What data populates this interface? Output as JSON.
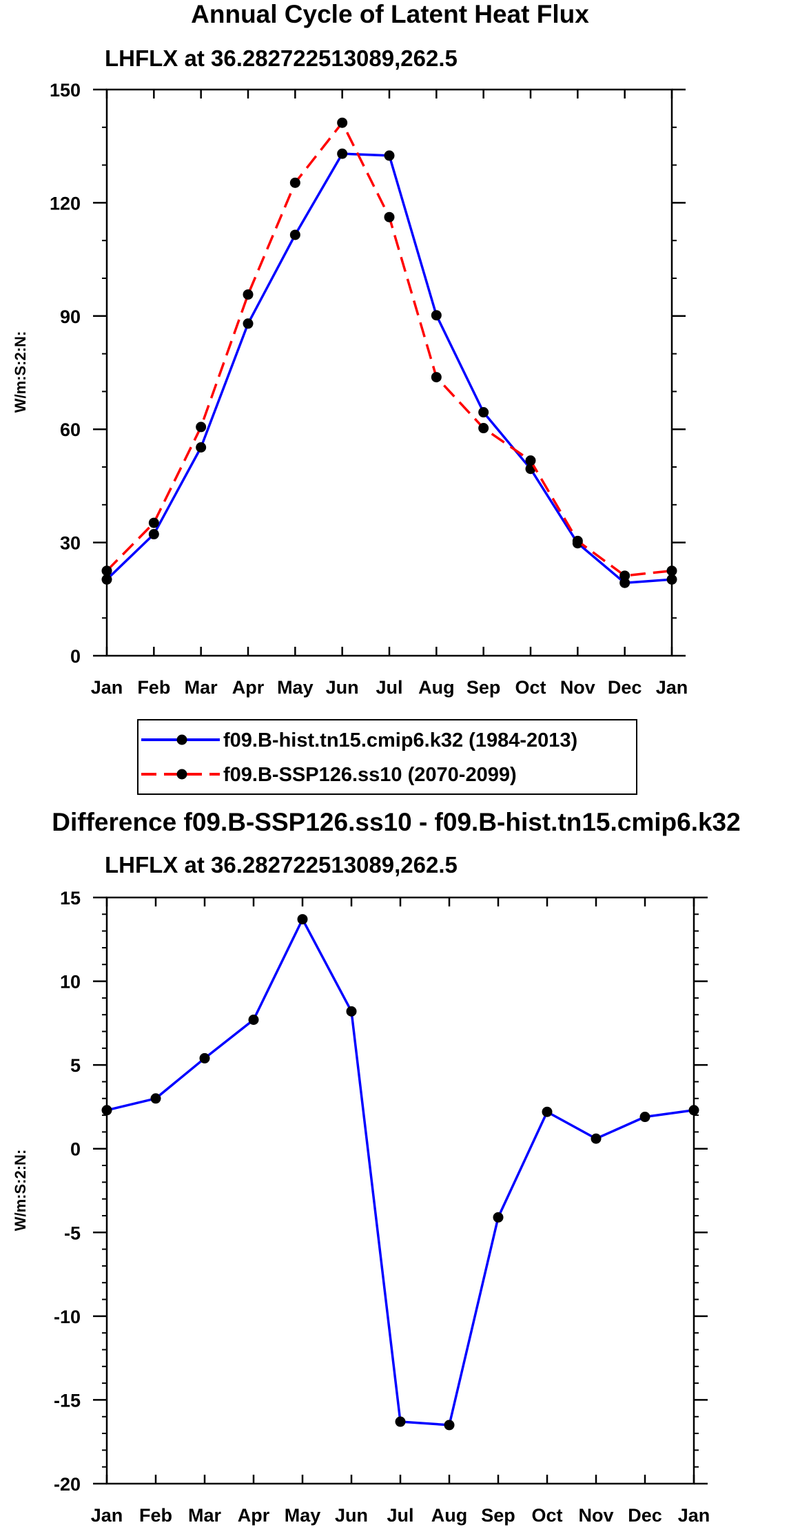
{
  "chart_data": [
    {
      "type": "line",
      "title": "Annual Cycle of Latent Heat Flux",
      "subtitle": "LHFLX at 36.282722513089,262.5",
      "xlabel": "",
      "ylabel": "W/m:S:2:N:",
      "categories": [
        "Jan",
        "Feb",
        "Mar",
        "Apr",
        "May",
        "Jun",
        "Jul",
        "Aug",
        "Sep",
        "Oct",
        "Nov",
        "Dec",
        "Jan"
      ],
      "ylim": [
        0,
        150
      ],
      "yticks": [
        0,
        30,
        60,
        90,
        120,
        150
      ],
      "yminor_step": 10,
      "series": [
        {
          "name": "f09.B-hist.tn15.cmip6.k32 (1984-2013)",
          "color": "#0000ff",
          "dash": "solid",
          "values": [
            20.2,
            32.2,
            55.2,
            88.0,
            111.5,
            133.0,
            132.5,
            90.2,
            64.5,
            49.5,
            29.8,
            19.3,
            20.2
          ]
        },
        {
          "name": "f09.B-SSP126.ss10 (2070-2099)",
          "color": "#ff0000",
          "dash": "dashed",
          "values": [
            22.5,
            35.2,
            60.6,
            95.7,
            125.3,
            141.2,
            116.2,
            73.8,
            60.3,
            51.7,
            30.4,
            21.2,
            22.5
          ]
        }
      ]
    },
    {
      "type": "line",
      "title": "Difference f09.B-SSP126.ss10 - f09.B-hist.tn15.cmip6.k32",
      "subtitle": "LHFLX at 36.282722513089,262.5",
      "xlabel": "",
      "ylabel": "W/m:S:2:N:",
      "categories": [
        "Jan",
        "Feb",
        "Mar",
        "Apr",
        "May",
        "Jun",
        "Jul",
        "Aug",
        "Sep",
        "Oct",
        "Nov",
        "Dec",
        "Jan"
      ],
      "ylim": [
        -20,
        15
      ],
      "yticks": [
        -20,
        -15,
        -10,
        -5,
        0,
        5,
        10,
        15
      ],
      "yminor_step": 1,
      "series": [
        {
          "name": "difference",
          "color": "#0000ff",
          "dash": "solid",
          "values": [
            2.3,
            3.0,
            5.4,
            7.7,
            13.7,
            8.2,
            -16.3,
            -16.5,
            -4.1,
            2.2,
            0.6,
            1.9,
            2.3
          ]
        }
      ]
    }
  ]
}
